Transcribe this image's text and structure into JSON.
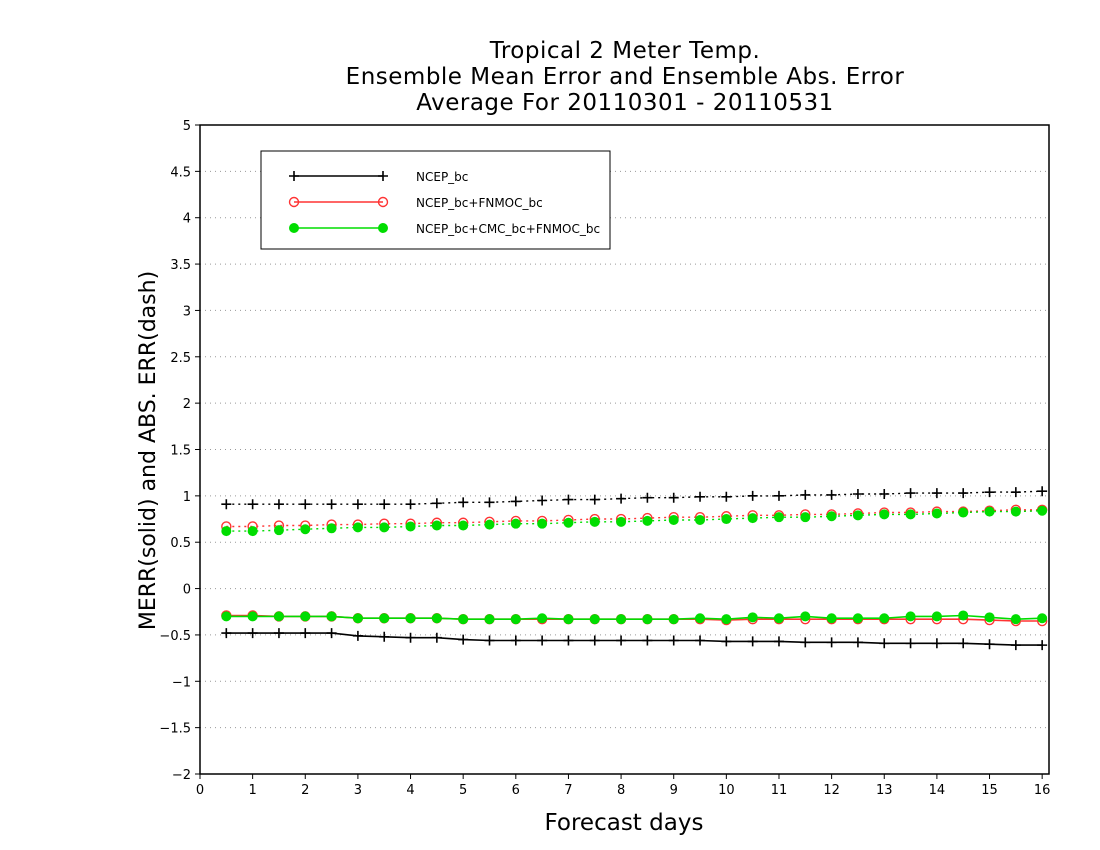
{
  "chart_data": {
    "type": "line",
    "title_lines": [
      "Tropical 2 Meter Temp.",
      "Ensemble Mean Error and Ensemble Abs. Error",
      "Average For 20110301 - 20110531"
    ],
    "xlabel": "Forecast days",
    "ylabel": "MERR(solid) and ABS. ERR(dash)",
    "xlim": [
      0,
      16.13
    ],
    "ylim": [
      -2,
      5
    ],
    "x_ticks": [
      "0",
      "1",
      "2",
      "3",
      "4",
      "5",
      "6",
      "7",
      "8",
      "9",
      "10",
      "11",
      "12",
      "13",
      "14",
      "15",
      "16"
    ],
    "y_ticks": [
      "-2",
      "-1.5",
      "-1",
      "-0.5",
      "0",
      "0.5",
      "1",
      "1.5",
      "2",
      "2.5",
      "3",
      "3.5",
      "4",
      "4.5",
      "5"
    ],
    "grid": "horizontal dotted",
    "legend_position": "top-left",
    "x": [
      0.5,
      1,
      1.5,
      2,
      2.5,
      3,
      3.5,
      4,
      4.5,
      5,
      5.5,
      6,
      6.5,
      7,
      7.5,
      8,
      8.5,
      9,
      9.5,
      10,
      10.5,
      11,
      11.5,
      12,
      12.5,
      13,
      13.5,
      14,
      14.5,
      15,
      15.5,
      16
    ],
    "series": [
      {
        "name": "NCEP_bc",
        "color": "#000000",
        "marker": "plus",
        "merr": [
          -0.48,
          -0.48,
          -0.48,
          -0.48,
          -0.48,
          -0.51,
          -0.52,
          -0.53,
          -0.53,
          -0.55,
          -0.56,
          -0.56,
          -0.56,
          -0.56,
          -0.56,
          -0.56,
          -0.56,
          -0.56,
          -0.56,
          -0.57,
          -0.57,
          -0.57,
          -0.58,
          -0.58,
          -0.58,
          -0.59,
          -0.59,
          -0.59,
          -0.59,
          -0.6,
          -0.61,
          -0.61
        ],
        "abs_err": [
          0.91,
          0.91,
          0.91,
          0.91,
          0.91,
          0.91,
          0.91,
          0.91,
          0.92,
          0.93,
          0.93,
          0.94,
          0.95,
          0.96,
          0.96,
          0.97,
          0.98,
          0.98,
          0.99,
          0.99,
          1.0,
          1.0,
          1.01,
          1.01,
          1.02,
          1.02,
          1.03,
          1.03,
          1.03,
          1.04,
          1.04,
          1.05
        ]
      },
      {
        "name": "NCEP_bc+FNMOC_bc",
        "color": "#ff3333",
        "marker": "open-circle",
        "merr": [
          -0.29,
          -0.29,
          -0.3,
          -0.3,
          -0.3,
          -0.32,
          -0.32,
          -0.32,
          -0.32,
          -0.33,
          -0.33,
          -0.33,
          -0.33,
          -0.33,
          -0.33,
          -0.33,
          -0.33,
          -0.33,
          -0.33,
          -0.34,
          -0.33,
          -0.33,
          -0.33,
          -0.33,
          -0.33,
          -0.33,
          -0.33,
          -0.33,
          -0.33,
          -0.34,
          -0.35,
          -0.35
        ],
        "abs_err": [
          0.67,
          0.67,
          0.68,
          0.68,
          0.69,
          0.69,
          0.7,
          0.7,
          0.71,
          0.71,
          0.72,
          0.73,
          0.73,
          0.74,
          0.75,
          0.75,
          0.76,
          0.77,
          0.77,
          0.78,
          0.79,
          0.79,
          0.8,
          0.8,
          0.81,
          0.82,
          0.82,
          0.83,
          0.83,
          0.84,
          0.85,
          0.85
        ]
      },
      {
        "name": "NCEP_bc+CMC_bc+FNMOC_bc",
        "color": "#00dd00",
        "marker": "filled-circle",
        "merr": [
          -0.3,
          -0.3,
          -0.3,
          -0.3,
          -0.3,
          -0.32,
          -0.32,
          -0.32,
          -0.32,
          -0.33,
          -0.33,
          -0.33,
          -0.32,
          -0.33,
          -0.33,
          -0.33,
          -0.33,
          -0.33,
          -0.32,
          -0.33,
          -0.31,
          -0.32,
          -0.3,
          -0.32,
          -0.32,
          -0.32,
          -0.3,
          -0.3,
          -0.29,
          -0.31,
          -0.33,
          -0.32
        ],
        "abs_err": [
          0.62,
          0.62,
          0.63,
          0.64,
          0.65,
          0.66,
          0.66,
          0.67,
          0.68,
          0.68,
          0.69,
          0.7,
          0.7,
          0.71,
          0.72,
          0.72,
          0.73,
          0.74,
          0.74,
          0.75,
          0.76,
          0.77,
          0.77,
          0.78,
          0.79,
          0.8,
          0.8,
          0.81,
          0.82,
          0.83,
          0.83,
          0.84
        ]
      }
    ]
  }
}
